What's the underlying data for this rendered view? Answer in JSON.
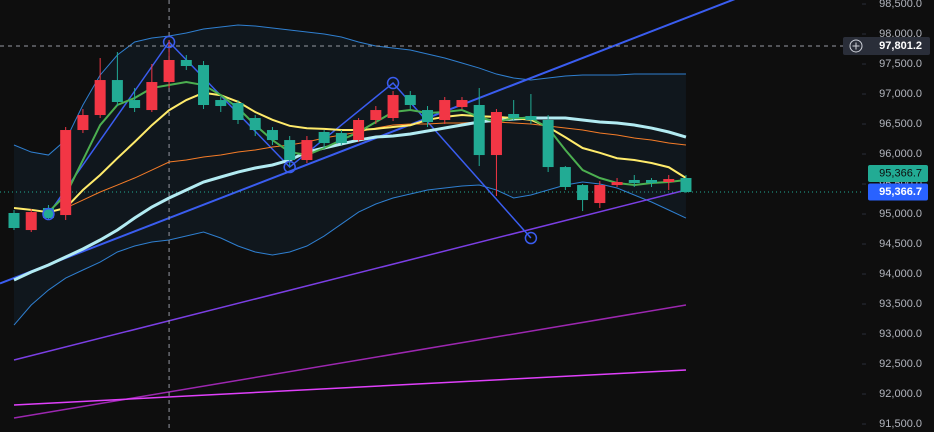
{
  "chart_data": {
    "type": "candlestick",
    "up_color": "#f23645",
    "down_color": "#22ab94",
    "background": "#0e0e0e",
    "ylim": [
      91367,
      98567
    ],
    "yticks": [
      {
        "value": 91500,
        "label": "91,500.0"
      },
      {
        "value": 92000,
        "label": "92,000.0"
      },
      {
        "value": 92500,
        "label": "92,500.0"
      },
      {
        "value": 93000,
        "label": "93,000.0"
      },
      {
        "value": 93500,
        "label": "93,500.0"
      },
      {
        "value": 94000,
        "label": "94,000.0"
      },
      {
        "value": 94500,
        "label": "94,500.0"
      },
      {
        "value": 95000,
        "label": "95,000.0"
      },
      {
        "value": 95500,
        "label": "95,500.0"
      },
      {
        "value": 96000,
        "label": "96,000.0"
      },
      {
        "value": 96500,
        "label": "96,500.0"
      },
      {
        "value": 97000,
        "label": "97,000.0"
      },
      {
        "value": 97500,
        "label": "97,500.0"
      },
      {
        "value": 98000,
        "label": "98,000.0"
      },
      {
        "value": 98500,
        "label": "98,500.0"
      }
    ],
    "open": [
      95017,
      94733,
      95100,
      94983,
      96400,
      96650,
      97233,
      96900,
      96733,
      97200,
      97567,
      97483,
      96900,
      96850,
      96600,
      96400,
      96233,
      95900,
      96367,
      96350,
      96233,
      96567,
      96600,
      96983,
      96733,
      96567,
      96783,
      96817,
      95983,
      96667,
      96633,
      96567,
      95783,
      95483,
      95183,
      95483,
      95567,
      95567,
      95533,
      95600
    ],
    "high": [
      95067,
      95083,
      95150,
      96450,
      96750,
      97600,
      97700,
      97100,
      97500,
      97900,
      97650,
      97550,
      96950,
      96900,
      96650,
      96450,
      96300,
      96300,
      96400,
      96400,
      96600,
      96800,
      97050,
      97050,
      96800,
      96950,
      96950,
      97100,
      96750,
      96900,
      97000,
      96650,
      95800,
      95500,
      95550,
      95600,
      95650,
      95600,
      95650,
      95650
    ],
    "low": [
      94733,
      94700,
      94900,
      94900,
      96350,
      96600,
      96800,
      96700,
      96700,
      97100,
      97400,
      96750,
      96700,
      96500,
      96300,
      96150,
      95800,
      95850,
      96100,
      96150,
      96200,
      96500,
      96550,
      96750,
      96450,
      96500,
      96750,
      95800,
      95300,
      96550,
      96500,
      95700,
      95400,
      95050,
      95100,
      95450,
      95450,
      95450,
      95400,
      95350
    ],
    "close": [
      94767,
      95033,
      94933,
      96400,
      96650,
      97233,
      96867,
      96767,
      97200,
      97567,
      97467,
      96817,
      96800,
      96567,
      96400,
      96233,
      95900,
      96233,
      96183,
      96183,
      96567,
      96733,
      96983,
      96817,
      96533,
      96900,
      96900,
      95983,
      96700,
      96600,
      96567,
      95783,
      95450,
      95233,
      95483,
      95533,
      95517,
      95517,
      95583,
      95366.7
    ],
    "bands": {
      "color": "#2f7fd0",
      "fill": "rgba(40,140,220,0.07)",
      "upper": [
        96150,
        96033,
        95983,
        96233,
        96817,
        97317,
        97650,
        97867,
        97933,
        97967,
        98017,
        98083,
        98117,
        98150,
        98133,
        98100,
        98067,
        98033,
        98000,
        97950,
        97867,
        97800,
        97767,
        97733,
        97667,
        97600,
        97517,
        97433,
        97333,
        97267,
        97233,
        97267,
        97300,
        97317,
        97317,
        97317,
        97333,
        97333,
        97333,
        97333
      ],
      "lower": [
        93150,
        93483,
        93733,
        93933,
        94067,
        94200,
        94367,
        94467,
        94533,
        94567,
        94633,
        94700,
        94600,
        94467,
        94367,
        94317,
        94367,
        94467,
        94633,
        94833,
        95033,
        95167,
        95267,
        95333,
        95400,
        95433,
        95467,
        95483,
        95400,
        95267,
        95317,
        95400,
        95483,
        95533,
        95500,
        95433,
        95317,
        95200,
        95067,
        94933
      ]
    },
    "lines": [
      {
        "color": "#f57c28",
        "width": 1,
        "values": [
          null,
          null,
          null,
          95100,
          95233,
          95367,
          95483,
          95600,
          95733,
          95867,
          95900,
          95950,
          95983,
          96033,
          96067,
          96117,
          96150,
          96200,
          96267,
          96317,
          96367,
          96433,
          96483,
          96500,
          96500,
          96517,
          96517,
          96533,
          96533,
          96517,
          96500,
          96467,
          96433,
          96400,
          96350,
          96317,
          96267,
          96233,
          96183,
          96150
        ]
      },
      {
        "color": "#b2ebf2",
        "width": 3,
        "values": [
          93900,
          94033,
          94150,
          94283,
          94417,
          94567,
          94733,
          94933,
          95117,
          95267,
          95400,
          95533,
          95617,
          95700,
          95767,
          95817,
          95900,
          96033,
          96100,
          96167,
          96233,
          96283,
          96300,
          96333,
          96383,
          96433,
          96483,
          96533,
          96567,
          96583,
          96600,
          96600,
          96600,
          96567,
          96533,
          96517,
          96483,
          96433,
          96367,
          96283
        ]
      },
      {
        "color": "#ffeb6b",
        "width": 2,
        "values": [
          95100,
          95070,
          95030,
          95100,
          95400,
          95650,
          95930,
          96200,
          96480,
          96730,
          96900,
          97020,
          96980,
          96870,
          96700,
          96570,
          96470,
          96430,
          96420,
          96400,
          96400,
          96420,
          96450,
          96480,
          96570,
          96620,
          96650,
          96630,
          96620,
          96600,
          96570,
          96450,
          96280,
          96100,
          96020,
          95930,
          95900,
          95850,
          95780,
          95600
        ]
      },
      {
        "color": "#4caf50",
        "width": 2,
        "values": [
          null,
          null,
          95033,
          95317,
          95900,
          96483,
          96817,
          96933,
          97100,
          97150,
          97200,
          97150,
          96983,
          96767,
          96483,
          96233,
          96033,
          95983,
          96100,
          96233,
          96367,
          96533,
          96700,
          96733,
          96683,
          96700,
          96733,
          96617,
          96533,
          96600,
          96600,
          96433,
          96067,
          95733,
          95600,
          95517,
          95483,
          95517,
          95533,
          95567
        ]
      }
    ],
    "segments": [
      {
        "color": "#7b3fe4",
        "x": [
          0,
          39
        ],
        "values": [
          92567,
          95400
        ]
      },
      {
        "color": "#9c27b0",
        "x": [
          0,
          39
        ],
        "values": [
          91600,
          93483
        ]
      },
      {
        "color": "#e040fb",
        "x": [
          0,
          39
        ],
        "values": [
          91817,
          92400
        ]
      },
      {
        "color": "#3a5df0",
        "x": [
          0,
          39
        ],
        "values": [
          93933,
          98267
        ],
        "extend": true
      },
      {
        "color": "#3a5df0",
        "x": [
          2,
          9,
          16,
          22,
          30
        ],
        "values": [
          95000,
          97867,
          95783,
          97183,
          94600
        ],
        "markers": true
      }
    ],
    "crosshair": {
      "x": 9,
      "value": 97801.2,
      "label": "97,801.2"
    },
    "last_price": {
      "value": 95366.7,
      "label": "95,366.7"
    }
  }
}
